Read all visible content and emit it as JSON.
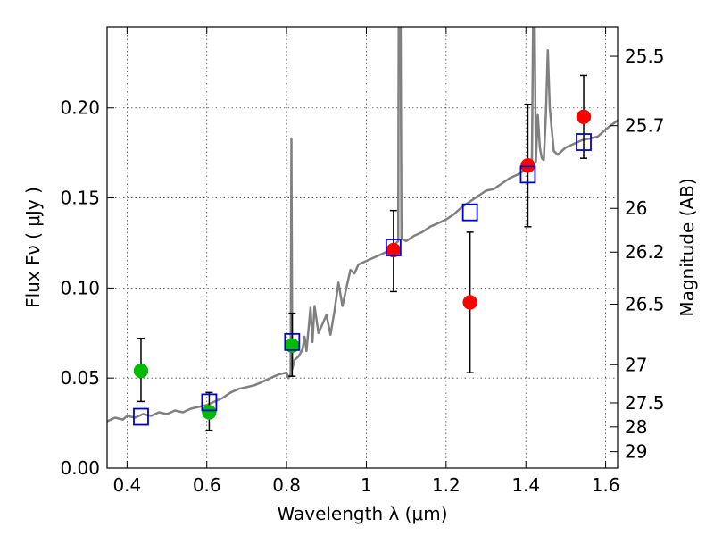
{
  "chart_data": {
    "type": "scatter",
    "xlabel": "Wavelength  λ (μm)",
    "ylabel": "Flux  Fν  ( μJy )",
    "ylabel_right": "Magnitude (AB)",
    "xlim": [
      0.35,
      1.63
    ],
    "ylim": [
      0.0,
      0.245
    ],
    "x_ticks": [
      0.4,
      0.6,
      0.8,
      1.0,
      1.2,
      1.4,
      1.6
    ],
    "x_tick_labels": [
      "0.4",
      "0.6",
      "0.8",
      "1",
      "1.2",
      "1.4",
      "1.6"
    ],
    "y_ticks": [
      0.0,
      0.05,
      0.1,
      0.15,
      0.2
    ],
    "y_tick_labels": [
      "0.00",
      "0.05",
      "0.10",
      "0.15",
      "0.20"
    ],
    "right_ticks": [
      {
        "label": "25.5",
        "flux": 0.2286
      },
      {
        "label": "25.7",
        "flux": 0.1901
      },
      {
        "label": "26",
        "flux": 0.1442
      },
      {
        "label": "26.2",
        "flux": 0.1199
      },
      {
        "label": "26.5",
        "flux": 0.091
      },
      {
        "label": "27",
        "flux": 0.0574
      },
      {
        "label": "27.5",
        "flux": 0.0362
      },
      {
        "label": "28",
        "flux": 0.0229
      },
      {
        "label": "29",
        "flux": 0.0091
      }
    ],
    "grid": true,
    "series": [
      {
        "marker": "circle",
        "color": "#00bb00",
        "points": [
          {
            "x": 0.435,
            "y": 0.054,
            "err_low": 0.017,
            "err_high": 0.018
          },
          {
            "x": 0.606,
            "y": 0.031,
            "err_low": 0.01,
            "err_high": 0.011
          },
          {
            "x": 0.814,
            "y": 0.068,
            "err_low": 0.017,
            "err_high": 0.018
          }
        ]
      },
      {
        "marker": "circle",
        "color": "#ff0000",
        "points": [
          {
            "x": 1.068,
            "y": 0.121,
            "err_low": 0.023,
            "err_high": 0.022
          },
          {
            "x": 1.26,
            "y": 0.092,
            "err_low": 0.039,
            "err_high": 0.039
          },
          {
            "x": 1.405,
            "y": 0.168,
            "err_low": 0.034,
            "err_high": 0.034
          },
          {
            "x": 1.545,
            "y": 0.195,
            "err_low": 0.023,
            "err_high": 0.023
          }
        ]
      },
      {
        "marker": "square-open",
        "color": "#0000cc",
        "points": [
          {
            "x": 0.435,
            "y": 0.0285
          },
          {
            "x": 0.606,
            "y": 0.0365
          },
          {
            "x": 0.814,
            "y": 0.07
          },
          {
            "x": 1.068,
            "y": 0.1225
          },
          {
            "x": 1.26,
            "y": 0.142
          },
          {
            "x": 1.405,
            "y": 0.163
          },
          {
            "x": 1.545,
            "y": 0.181
          }
        ]
      },
      {
        "marker": "line",
        "color": "#808080",
        "points": [
          [
            0.35,
            0.026
          ],
          [
            0.37,
            0.028
          ],
          [
            0.39,
            0.027
          ],
          [
            0.4,
            0.029
          ],
          [
            0.42,
            0.028
          ],
          [
            0.44,
            0.03
          ],
          [
            0.46,
            0.029
          ],
          [
            0.48,
            0.031
          ],
          [
            0.5,
            0.03
          ],
          [
            0.52,
            0.032
          ],
          [
            0.54,
            0.031
          ],
          [
            0.56,
            0.033
          ],
          [
            0.58,
            0.034
          ],
          [
            0.6,
            0.035
          ],
          [
            0.62,
            0.037
          ],
          [
            0.64,
            0.039
          ],
          [
            0.66,
            0.042
          ],
          [
            0.68,
            0.044
          ],
          [
            0.7,
            0.045
          ],
          [
            0.72,
            0.046
          ],
          [
            0.74,
            0.048
          ],
          [
            0.76,
            0.05
          ],
          [
            0.78,
            0.052
          ],
          [
            0.8,
            0.053
          ],
          [
            0.805,
            0.05
          ],
          [
            0.81,
            0.052
          ],
          [
            0.812,
            0.183
          ],
          [
            0.814,
            0.055
          ],
          [
            0.82,
            0.06
          ],
          [
            0.83,
            0.062
          ],
          [
            0.84,
            0.066
          ],
          [
            0.845,
            0.073
          ],
          [
            0.85,
            0.065
          ],
          [
            0.86,
            0.089
          ],
          [
            0.865,
            0.07
          ],
          [
            0.87,
            0.09
          ],
          [
            0.88,
            0.075
          ],
          [
            0.89,
            0.08
          ],
          [
            0.9,
            0.085
          ],
          [
            0.91,
            0.074
          ],
          [
            0.92,
            0.087
          ],
          [
            0.93,
            0.103
          ],
          [
            0.94,
            0.09
          ],
          [
            0.95,
            0.1
          ],
          [
            0.96,
            0.11
          ],
          [
            0.97,
            0.108
          ],
          [
            0.98,
            0.113
          ],
          [
            0.99,
            0.114
          ],
          [
            1.0,
            0.115
          ],
          [
            1.02,
            0.117
          ],
          [
            1.04,
            0.119
          ],
          [
            1.06,
            0.121
          ],
          [
            1.07,
            0.124
          ],
          [
            1.08,
            0.126
          ],
          [
            1.081,
            0.245
          ],
          [
            1.086,
            0.245
          ],
          [
            1.088,
            0.128
          ],
          [
            1.09,
            0.127
          ],
          [
            1.1,
            0.126
          ],
          [
            1.12,
            0.129
          ],
          [
            1.14,
            0.131
          ],
          [
            1.16,
            0.134
          ],
          [
            1.18,
            0.136
          ],
          [
            1.2,
            0.138
          ],
          [
            1.22,
            0.141
          ],
          [
            1.24,
            0.145
          ],
          [
            1.26,
            0.148
          ],
          [
            1.28,
            0.151
          ],
          [
            1.3,
            0.154
          ],
          [
            1.32,
            0.155
          ],
          [
            1.34,
            0.158
          ],
          [
            1.36,
            0.161
          ],
          [
            1.38,
            0.163
          ],
          [
            1.4,
            0.166
          ],
          [
            1.415,
            0.166
          ],
          [
            1.418,
            0.245
          ],
          [
            1.422,
            0.245
          ],
          [
            1.425,
            0.17
          ],
          [
            1.43,
            0.196
          ],
          [
            1.435,
            0.178
          ],
          [
            1.44,
            0.172
          ],
          [
            1.445,
            0.171
          ],
          [
            1.45,
            0.196
          ],
          [
            1.455,
            0.232
          ],
          [
            1.46,
            0.2
          ],
          [
            1.47,
            0.176
          ],
          [
            1.48,
            0.174
          ],
          [
            1.5,
            0.178
          ],
          [
            1.52,
            0.18
          ],
          [
            1.54,
            0.182
          ],
          [
            1.56,
            0.183
          ],
          [
            1.58,
            0.184
          ],
          [
            1.6,
            0.188
          ],
          [
            1.63,
            0.193
          ]
        ]
      }
    ]
  }
}
